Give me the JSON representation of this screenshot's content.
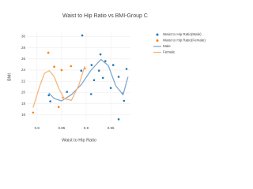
{
  "chart_data": {
    "type": "scatter",
    "title": "Waist to Hip Ratio vs BMI-Group C",
    "x_label": "Waist to Hip Ratio",
    "y_label": "BMI",
    "xlim": [
      0.781,
      0.99
    ],
    "ylim": [
      14.7,
      30.9
    ],
    "xticks": [
      {
        "value": 0.8,
        "label": "0.8"
      },
      0.85,
      {
        "value": 0.9,
        "label": "0.9"
      },
      0.95
    ],
    "yticks": [
      16,
      18,
      20,
      22,
      24,
      26,
      28,
      30
    ],
    "grid": true,
    "series": [
      {
        "name": "Waist to Hip Ratio(Male)",
        "mode": "markers",
        "color": "#1f77b4",
        "x": [
          0.892,
          0.929,
          0.911,
          0.939,
          0.955,
          0.89,
          0.926,
          0.934,
          0.982,
          0.966,
          0.916,
          0.95,
          0.861,
          0.824,
          0.827,
          0.974,
          0.977,
          0.966,
          0.91
        ],
        "values": [
          30.2,
          26.8,
          24.9,
          25.6,
          24.9,
          23.9,
          23.9,
          22.6,
          24.2,
          22.8,
          22.2,
          20.8,
          20.1,
          19.5,
          18.4,
          19.8,
          18.5,
          15.2,
          19.7
        ]
      },
      {
        "name": "Waist to Hip Ratio(Female)",
        "mode": "markers",
        "color": "#ff7f0e",
        "x": [
          0.823,
          0.835,
          0.85,
          0.869,
          0.853,
          0.844,
          0.792,
          0.897
        ],
        "values": [
          27.1,
          24.6,
          24.0,
          24.7,
          19.1,
          17.4,
          16.4,
          24.3
        ]
      },
      {
        "name": "Male",
        "mode": "lines",
        "color": "#7fa8cf",
        "x": [
          0.824,
          0.835,
          0.85,
          0.87,
          0.89,
          0.91,
          0.93,
          0.945,
          0.96,
          0.975,
          0.985
        ],
        "values": [
          19.9,
          18.9,
          18.5,
          19.6,
          21.4,
          24.0,
          25.9,
          24.8,
          21.2,
          19.6,
          22.8
        ]
      },
      {
        "name": "Female",
        "mode": "lines",
        "color": "#f5b77e",
        "x": [
          0.792,
          0.805,
          0.815,
          0.825,
          0.835,
          0.845,
          0.855,
          0.87,
          0.885,
          0.897
        ],
        "values": [
          17.3,
          21.0,
          23.4,
          23.9,
          22.8,
          20.6,
          18.9,
          18.6,
          21.3,
          24.7
        ]
      }
    ]
  }
}
